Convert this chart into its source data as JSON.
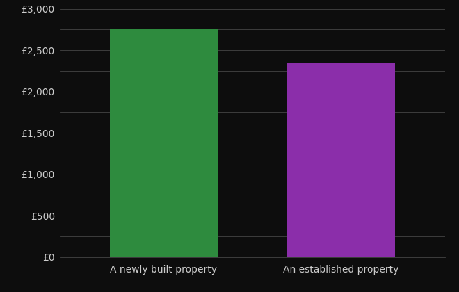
{
  "categories": [
    "A newly built property",
    "An established property"
  ],
  "values": [
    2750,
    2350
  ],
  "bar_colors": [
    "#2e8b3e",
    "#8b2eaa"
  ],
  "background_color": "#0d0d0d",
  "text_color": "#cccccc",
  "grid_color": "#444444",
  "ylim": [
    0,
    3000
  ],
  "yticks": [
    0,
    250,
    500,
    750,
    1000,
    1250,
    1500,
    1750,
    2000,
    2250,
    2500,
    2750,
    3000
  ],
  "ytick_labels": [
    "£0",
    "",
    "£500",
    "",
    "£1,000",
    "",
    "£1,500",
    "",
    "£2,000",
    "",
    "£2,500",
    "",
    "£3,000"
  ],
  "bar_width": 0.28,
  "x_positions": [
    0.27,
    0.73
  ],
  "xlim": [
    0,
    1
  ],
  "xlabel": "",
  "ylabel": "",
  "tick_fontsize": 10,
  "label_fontsize": 10
}
